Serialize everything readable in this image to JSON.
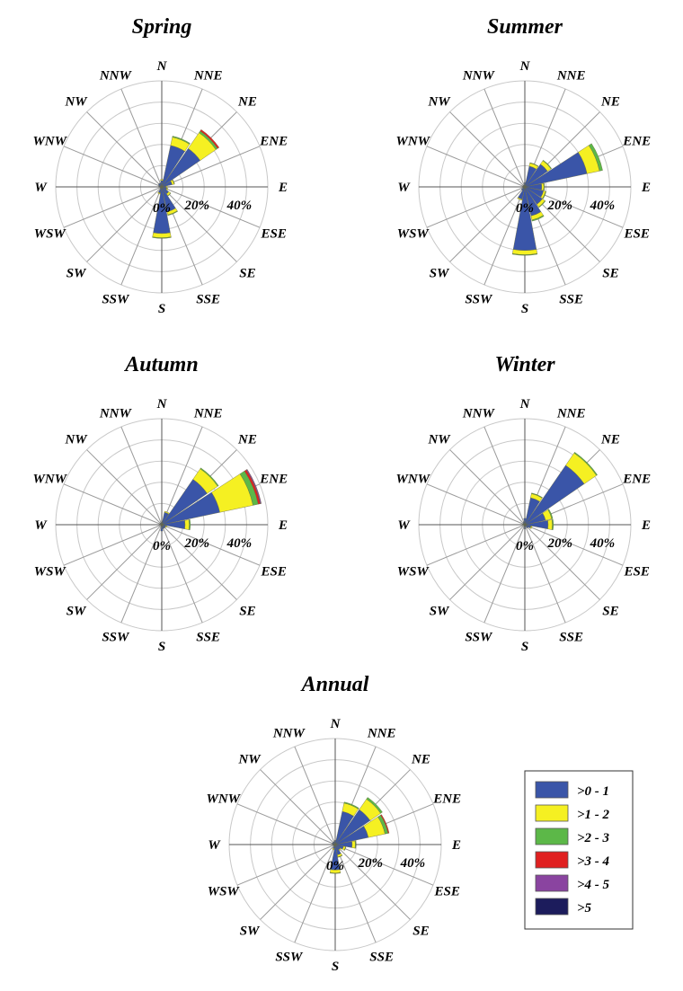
{
  "directions": [
    "N",
    "NNE",
    "NE",
    "ENE",
    "E",
    "ESE",
    "SE",
    "SSE",
    "S",
    "SSW",
    "SW",
    "WSW",
    "W",
    "WNW",
    "NW",
    "NNW"
  ],
  "radial_tick_labels": [
    "0%",
    "20%",
    "40%"
  ],
  "colors": {
    "bin_0": "#3a55a8",
    "bin_1": "#f5f022",
    "bin_2": "#5cb848",
    "bin_3": "#e02020",
    "bin_4": "#8a44a0",
    "bin_5": "#1c1c5c"
  },
  "legend": {
    "position": "right",
    "items": [
      ">0 - 1",
      ">1 - 2",
      ">2 - 3",
      ">3 - 4",
      ">4 - 5",
      ">5"
    ]
  },
  "chart_data": [
    {
      "type": "wind-rose",
      "title": "Spring",
      "radial_max": 50,
      "grid_interval": 10,
      "bins": [
        ">0 - 1",
        ">1 - 2",
        ">2 - 3",
        ">3 - 4",
        ">4 - 5",
        ">5"
      ],
      "values": [
        [
          3,
          0.5,
          0,
          0,
          0,
          0
        ],
        [
          20,
          4,
          0.5,
          0,
          0,
          0
        ],
        [
          22,
          9,
          1,
          0.8,
          0,
          0
        ],
        [
          5,
          1,
          0.2,
          0,
          0,
          0
        ],
        [
          2,
          0.5,
          0,
          0,
          0,
          0
        ],
        [
          2.5,
          0.5,
          0,
          0,
          0,
          0
        ],
        [
          4,
          1,
          0.2,
          0,
          0,
          0
        ],
        [
          12,
          1.5,
          0.3,
          0,
          0,
          0
        ],
        [
          22,
          2,
          0.3,
          0,
          0,
          0
        ],
        [
          3,
          0.5,
          0,
          0,
          0,
          0
        ],
        [
          1,
          0,
          0,
          0,
          0,
          0
        ],
        [
          0.8,
          0,
          0,
          0,
          0,
          0
        ],
        [
          1,
          0,
          0,
          0,
          0,
          0
        ],
        [
          1.5,
          0,
          0,
          0,
          0,
          0
        ],
        [
          2,
          0,
          0,
          0,
          0,
          0
        ],
        [
          2,
          0,
          0,
          0,
          0,
          0
        ]
      ]
    },
    {
      "type": "wind-rose",
      "title": "Summer",
      "radial_max": 50,
      "grid_interval": 10,
      "bins": [
        ">0 - 1",
        ">1 - 2",
        ">2 - 3",
        ">3 - 4",
        ">4 - 5",
        ">5"
      ],
      "values": [
        [
          2,
          0,
          0,
          0,
          0,
          0
        ],
        [
          10,
          1.5,
          0.2,
          0,
          0,
          0
        ],
        [
          13,
          2,
          0.3,
          0,
          0,
          0
        ],
        [
          30,
          6,
          1.5,
          0,
          0,
          0
        ],
        [
          8,
          1,
          0.3,
          0,
          0,
          0
        ],
        [
          9,
          1,
          0.3,
          0,
          0,
          0
        ],
        [
          10,
          1.5,
          0.3,
          0,
          0,
          0
        ],
        [
          14,
          2,
          0.5,
          0,
          0,
          0
        ],
        [
          30,
          2,
          0.3,
          0,
          0,
          0
        ],
        [
          6,
          0.5,
          0,
          0,
          0,
          0
        ],
        [
          2,
          0,
          0,
          0,
          0,
          0
        ],
        [
          1,
          0,
          0,
          0,
          0,
          0
        ],
        [
          1,
          0,
          0,
          0,
          0,
          0
        ],
        [
          1,
          0,
          0,
          0,
          0,
          0
        ],
        [
          1,
          0,
          0,
          0,
          0,
          0
        ],
        [
          1,
          0,
          0,
          0,
          0,
          0
        ]
      ]
    },
    {
      "type": "wind-rose",
      "title": "Autumn",
      "radial_max": 50,
      "grid_interval": 10,
      "bins": [
        ">0 - 1",
        ">1 - 2",
        ">2 - 3",
        ">3 - 4",
        ">4 - 5",
        ">5"
      ],
      "values": [
        [
          1,
          0,
          0,
          0,
          0,
          0
        ],
        [
          6,
          0.5,
          0,
          0,
          0,
          0
        ],
        [
          26,
          6,
          0.5,
          0,
          0,
          0
        ],
        [
          28,
          16,
          2.5,
          1,
          0.5,
          0
        ],
        [
          11,
          2,
          0.5,
          0,
          0,
          0
        ],
        [
          2,
          0.5,
          0,
          0,
          0,
          0
        ],
        [
          2,
          0,
          0,
          0,
          0,
          0
        ],
        [
          2,
          0,
          0,
          0,
          0,
          0
        ],
        [
          3,
          0,
          0,
          0,
          0,
          0
        ],
        [
          1,
          0,
          0,
          0,
          0,
          0
        ],
        [
          0.5,
          0,
          0,
          0,
          0,
          0
        ],
        [
          0.5,
          0,
          0,
          0,
          0,
          0
        ],
        [
          0.5,
          0,
          0,
          0,
          0,
          0
        ],
        [
          1,
          0,
          0,
          0,
          0,
          0
        ],
        [
          1,
          0,
          0,
          0,
          0,
          0
        ],
        [
          1,
          0,
          0,
          0,
          0,
          0
        ]
      ]
    },
    {
      "type": "wind-rose",
      "title": "Winter",
      "radial_max": 50,
      "grid_interval": 10,
      "bins": [
        ">0 - 1",
        ">1 - 2",
        ">2 - 3",
        ">3 - 4",
        ">4 - 5",
        ">5"
      ],
      "values": [
        [
          3,
          0,
          0,
          0,
          0,
          0
        ],
        [
          13,
          2,
          0.3,
          0,
          0,
          0
        ],
        [
          34,
          7,
          0.5,
          0,
          0,
          0
        ],
        [
          10,
          3,
          0.5,
          0,
          0,
          0
        ],
        [
          11,
          2,
          0.5,
          0,
          0,
          0
        ],
        [
          3,
          0.5,
          0,
          0,
          0,
          0
        ],
        [
          2,
          0,
          0,
          0,
          0,
          0
        ],
        [
          1,
          0,
          0,
          0,
          0,
          0
        ],
        [
          2,
          0,
          0,
          0,
          0,
          0
        ],
        [
          1,
          0,
          0,
          0,
          0,
          0
        ],
        [
          0.5,
          0,
          0,
          0,
          0,
          0
        ],
        [
          0.5,
          0,
          0,
          0,
          0,
          0
        ],
        [
          1,
          0,
          0,
          0,
          0,
          0
        ],
        [
          1,
          0,
          0,
          0,
          0,
          0
        ],
        [
          1,
          0,
          0,
          0,
          0,
          0
        ],
        [
          1.5,
          0,
          0,
          0,
          0,
          0
        ]
      ]
    },
    {
      "type": "wind-rose",
      "title": "Annual",
      "radial_max": 50,
      "grid_interval": 10,
      "bins": [
        ">0 - 1",
        ">1 - 2",
        ">2 - 3",
        ">3 - 4",
        ">4 - 5",
        ">5"
      ],
      "values": [
        [
          2,
          0,
          0,
          0,
          0,
          0
        ],
        [
          16,
          4,
          0.5,
          0,
          0,
          0
        ],
        [
          20,
          6,
          1,
          0,
          0,
          0
        ],
        [
          16,
          8,
          1.5,
          0.5,
          0,
          0
        ],
        [
          8,
          1.5,
          0.3,
          0,
          0,
          0
        ],
        [
          4,
          1,
          0.2,
          0,
          0,
          0
        ],
        [
          3,
          0.5,
          0,
          0,
          0,
          0
        ],
        [
          5,
          1,
          0.2,
          0,
          0,
          0
        ],
        [
          12,
          1.5,
          0.2,
          0,
          0,
          0
        ],
        [
          2,
          0.5,
          0,
          0,
          0,
          0
        ],
        [
          1,
          0,
          0,
          0,
          0,
          0
        ],
        [
          1,
          0,
          0,
          0,
          0,
          0
        ],
        [
          1,
          0,
          0,
          0,
          0,
          0
        ],
        [
          1.5,
          0,
          0,
          0,
          0,
          0
        ],
        [
          1.5,
          0,
          0,
          0,
          0,
          0
        ],
        [
          1.5,
          0,
          0,
          0,
          0,
          0
        ]
      ]
    }
  ]
}
